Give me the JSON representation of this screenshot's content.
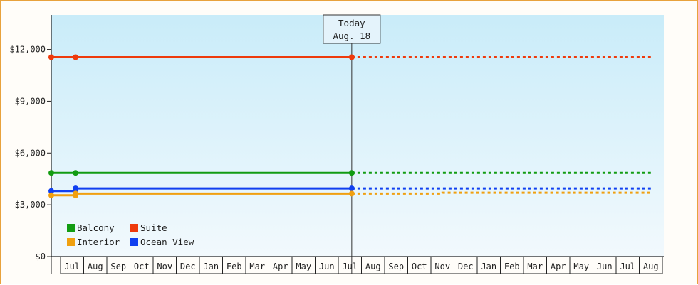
{
  "chart_data": {
    "type": "line",
    "x_months": [
      "Jul",
      "Aug",
      "Sep",
      "Oct",
      "Nov",
      "Dec",
      "Jan",
      "Feb",
      "Mar",
      "Apr",
      "May",
      "Jun",
      "Jul",
      "Aug",
      "Sep",
      "Oct",
      "Nov",
      "Dec",
      "Jan",
      "Feb",
      "Mar",
      "Apr",
      "May",
      "Jun",
      "Jul",
      "Aug"
    ],
    "ylim": [
      0,
      14000
    ],
    "yticks": [
      {
        "value": 0,
        "label": "$0"
      },
      {
        "value": 3000,
        "label": "$3,000"
      },
      {
        "value": 6000,
        "label": "$6,000"
      },
      {
        "value": 9000,
        "label": "$9,000"
      },
      {
        "value": 12000,
        "label": "$12,000"
      }
    ],
    "today": {
      "line1": "Today",
      "line2": "Aug. 18",
      "month_index": 13.58
    },
    "series": [
      {
        "name": "Suite",
        "color": "#ee3a0c",
        "actual": [
          [
            0,
            11550
          ],
          [
            1.65,
            11550
          ],
          [
            13.58,
            11550
          ]
        ],
        "forecast": [
          [
            13.58,
            11550
          ],
          [
            26.5,
            11550
          ]
        ]
      },
      {
        "name": "Balcony",
        "color": "#129c12",
        "actual": [
          [
            0,
            4850
          ],
          [
            1.65,
            4850
          ],
          [
            13.58,
            4850
          ]
        ],
        "forecast": [
          [
            13.58,
            4850
          ],
          [
            26.5,
            4850
          ]
        ]
      },
      {
        "name": "Ocean View",
        "color": "#1040f0",
        "actual": [
          [
            0,
            3800
          ],
          [
            1.65,
            3800
          ],
          [
            1.65,
            3950
          ],
          [
            13.58,
            3950
          ]
        ],
        "forecast": [
          [
            13.58,
            3950
          ],
          [
            26.5,
            3950
          ]
        ]
      },
      {
        "name": "Interior",
        "color": "#f0a010",
        "actual": [
          [
            0,
            3550
          ],
          [
            1.65,
            3550
          ],
          [
            1.65,
            3650
          ],
          [
            13.58,
            3650
          ]
        ],
        "forecast": [
          [
            13.58,
            3650
          ],
          [
            17.5,
            3650
          ],
          [
            17.5,
            3700
          ],
          [
            26.5,
            3700
          ]
        ]
      }
    ],
    "legend": [
      {
        "name": "Balcony",
        "color": "#129c12"
      },
      {
        "name": "Suite",
        "color": "#ee3a0c"
      },
      {
        "name": "Interior",
        "color": "#f0a010"
      },
      {
        "name": "Ocean View",
        "color": "#1040f0"
      }
    ],
    "legend_position": "bottom-left",
    "grid": false
  }
}
